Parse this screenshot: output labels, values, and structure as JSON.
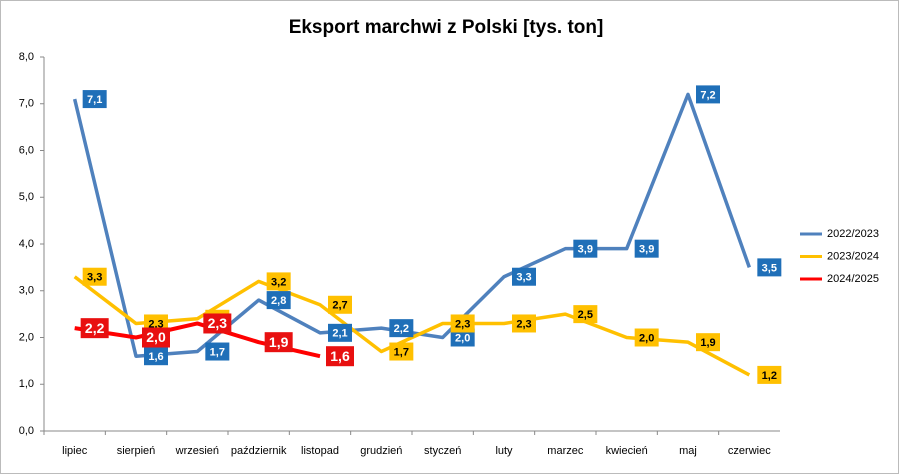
{
  "chart_data": {
    "type": "line",
    "title": "Eksport marchwi z Polski [tys. ton]",
    "categories": [
      "lipiec",
      "sierpień",
      "wrzesień",
      "październik",
      "listopad",
      "grudzień",
      "styczeń",
      "luty",
      "marzec",
      "kwiecień",
      "maj",
      "czerwiec"
    ],
    "ylim": [
      0,
      8
    ],
    "yticks": [
      {
        "value": 0,
        "label": "0,0"
      },
      {
        "value": 1,
        "label": "1,0"
      },
      {
        "value": 2,
        "label": "2,0"
      },
      {
        "value": 3,
        "label": "3,0"
      },
      {
        "value": 4,
        "label": "4,0"
      },
      {
        "value": 5,
        "label": "5,0"
      },
      {
        "value": 6,
        "label": "6,0"
      },
      {
        "value": 7,
        "label": "7,0"
      },
      {
        "value": 8,
        "label": "8,0"
      }
    ],
    "grid": false,
    "legend": "right",
    "series": [
      {
        "name": "2022/2023",
        "color": "#4f81bd",
        "label_color": "#1f6fb8",
        "label_text_color": "#ffffff",
        "values": [
          7.1,
          1.6,
          1.7,
          2.8,
          2.1,
          2.2,
          2.0,
          3.3,
          3.9,
          3.9,
          7.2,
          3.5
        ],
        "value_labels": [
          "7,1",
          "1,6",
          "1,7",
          "2,8",
          "2,1",
          "2,2",
          "2,0",
          "3,3",
          "3,9",
          "3,9",
          "7,2",
          "3,5"
        ]
      },
      {
        "name": "2023/2024",
        "color": "#ffc000",
        "label_color": "#ffc000",
        "label_text_color": "#000000",
        "values": [
          3.3,
          2.3,
          2.4,
          3.2,
          2.7,
          1.7,
          2.3,
          2.3,
          2.5,
          2.0,
          1.9,
          1.2
        ],
        "value_labels": [
          "3,3",
          "2,3",
          "2,4",
          "3,2",
          "2,7",
          "1,7",
          "2,3",
          "2,3",
          "2,5",
          "2,0",
          "1,9",
          "1,2"
        ]
      },
      {
        "name": "2024/2025",
        "color": "#ff0000",
        "label_color": "#e81010",
        "label_text_color": "#ffffff",
        "values": [
          2.2,
          2.0,
          2.3,
          1.9,
          1.6,
          null,
          null,
          null,
          null,
          null,
          null,
          null
        ],
        "value_labels": [
          "2,2",
          "2,0",
          "2,3",
          "1,9",
          "1,6",
          null,
          null,
          null,
          null,
          null,
          null,
          null
        ]
      }
    ]
  }
}
